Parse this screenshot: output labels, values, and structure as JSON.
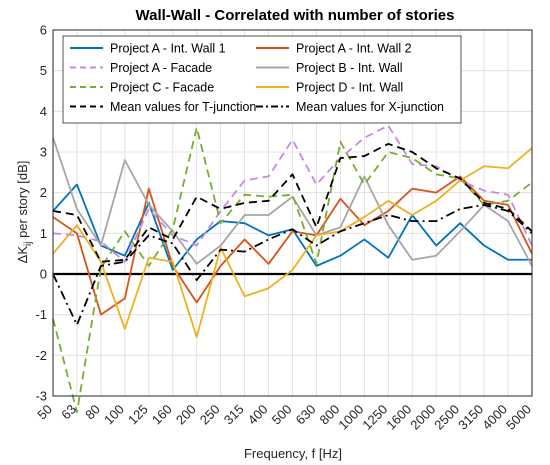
{
  "chart_data": {
    "type": "line",
    "title": "Wall-Wall - Correlated with number of stories",
    "xlabel": "Frequency, f [Hz]",
    "ylabel": {
      "delta": "ΔK",
      "subscript": "ij",
      "rest": " per story [dB]"
    },
    "x_scale": "log-category",
    "categories": [
      "50",
      "63",
      "80",
      "100",
      "125",
      "160",
      "200",
      "250",
      "315",
      "400",
      "500",
      "630",
      "800",
      "1000",
      "1250",
      "1600",
      "2000",
      "2500",
      "3150",
      "4000",
      "5000"
    ],
    "ylim": [
      -3,
      6
    ],
    "yticks": [
      -3,
      -2,
      -1,
      0,
      1,
      2,
      3,
      4,
      5,
      6
    ],
    "grid": true,
    "legend_location": "top-left",
    "series": [
      {
        "name": "Project A - Int. Wall 1",
        "color": "#0072BD",
        "dash": "solid",
        "values": [
          1.55,
          2.2,
          0.7,
          0.45,
          1.75,
          0.1,
          0.85,
          1.3,
          1.25,
          0.95,
          1.1,
          0.2,
          0.45,
          0.85,
          0.4,
          1.45,
          0.7,
          1.25,
          0.7,
          0.35,
          0.35
        ]
      },
      {
        "name": "Project A - Int. Wall 2",
        "color": "#D95319",
        "dash": "solid",
        "values": [
          1.4,
          1.0,
          -1.0,
          -0.6,
          2.1,
          0.2,
          -0.7,
          0.2,
          0.85,
          0.25,
          1.05,
          0.95,
          1.85,
          1.2,
          1.55,
          2.1,
          2.0,
          2.4,
          1.8,
          1.7,
          0.5
        ]
      },
      {
        "name": "Project A - Facade",
        "color": "#C688E3",
        "dash": "dash",
        "values": [
          1.0,
          0.95,
          0.8,
          0.3,
          1.6,
          0.95,
          0.7,
          1.55,
          2.3,
          2.4,
          3.3,
          2.2,
          2.85,
          3.35,
          3.65,
          2.7,
          2.65,
          2.3,
          2.05,
          1.95,
          0.7
        ]
      },
      {
        "name": "Project B - Int. Wall",
        "color": "#A6A6A6",
        "dash": "solid",
        "values": [
          3.35,
          1.6,
          0.7,
          2.8,
          1.7,
          1.05,
          0.25,
          0.7,
          1.45,
          1.45,
          1.9,
          0.95,
          1.15,
          2.4,
          1.2,
          0.35,
          0.45,
          1.05,
          1.7,
          1.3,
          0.2
        ]
      },
      {
        "name": "Project C - Facade",
        "color": "#77AC30",
        "dash": "dash",
        "values": [
          -1.1,
          -3.4,
          0.15,
          1.05,
          0.2,
          1.1,
          3.6,
          1.25,
          1.95,
          1.9,
          1.95,
          0.25,
          3.25,
          2.2,
          3.0,
          2.85,
          2.45,
          2.35,
          1.7,
          1.8,
          2.25
        ]
      },
      {
        "name": "Project D - Int. Wall",
        "color": "#EDB120",
        "dash": "solid",
        "values": [
          0.5,
          1.2,
          0.3,
          -1.35,
          0.4,
          0.3,
          -1.55,
          0.65,
          -0.55,
          -0.35,
          0.1,
          0.95,
          1.05,
          1.4,
          1.8,
          1.45,
          1.8,
          2.3,
          2.65,
          2.6,
          3.1
        ]
      },
      {
        "name": "Mean values for T-junction",
        "color": "#000000",
        "dash": "dash",
        "values": [
          1.55,
          1.45,
          0.3,
          0.35,
          1.15,
          0.85,
          1.9,
          1.6,
          1.75,
          1.8,
          2.45,
          1.15,
          2.85,
          2.9,
          3.2,
          3.0,
          2.6,
          2.35,
          1.75,
          1.6,
          1.05
        ]
      },
      {
        "name": "Mean values for X-junction",
        "color": "#000000",
        "dash": "dashdot",
        "values": [
          0.0,
          -1.25,
          0.2,
          0.3,
          0.95,
          0.75,
          -0.15,
          0.6,
          0.55,
          0.85,
          1.1,
          0.7,
          1.05,
          1.25,
          1.45,
          1.3,
          1.3,
          1.6,
          1.7,
          1.55,
          1.0
        ]
      }
    ]
  }
}
